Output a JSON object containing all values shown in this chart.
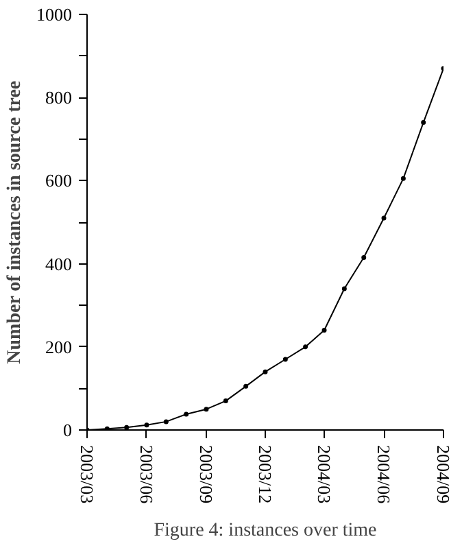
{
  "chart_data": {
    "type": "line",
    "ylabel": "Number of instances in source tree",
    "annotations": [
      "Figure 4: instances over time"
    ],
    "x": [
      "2003-03",
      "2003-04",
      "2003-05",
      "2003-06",
      "2003-07",
      "2003-08",
      "2003-09",
      "2003-10",
      "2003-11",
      "2003-12",
      "2004-01",
      "2004-02",
      "2004-03",
      "2004-04",
      "2004-05",
      "2004-06",
      "2004-07",
      "2004-08",
      "2004-09"
    ],
    "series": [
      {
        "color": "#000000",
        "values": [
          0,
          3,
          6,
          12,
          20,
          38,
          50,
          70,
          105,
          140,
          170,
          200,
          240,
          340,
          415,
          510,
          605,
          740,
          870
        ]
      }
    ],
    "xlim": [
      "2003-03",
      "2004-09"
    ],
    "xticks": [
      {
        "value": "2003-03",
        "label": "2003/03"
      },
      {
        "value": "2003-06",
        "label": "2003/06"
      },
      {
        "value": "2003-09",
        "label": "2003/09"
      },
      {
        "value": "2003-12",
        "label": "2003/12"
      },
      {
        "value": "2004-03",
        "label": "2004/03"
      },
      {
        "value": "2004-06",
        "label": "2004/06"
      },
      {
        "value": "2004-09",
        "label": "2004/09"
      }
    ],
    "ylim": [
      0,
      1000
    ],
    "yticks": [
      0,
      {
        "value": 100,
        "label": null
      },
      200,
      {
        "value": 300,
        "label": null
      },
      400,
      {
        "value": 500,
        "label": null
      },
      600,
      {
        "value": 700,
        "label": null
      },
      800,
      {
        "value": 900,
        "label": null
      },
      1000
    ],
    "grid": false,
    "marker": "circle",
    "line_style": "solid"
  }
}
